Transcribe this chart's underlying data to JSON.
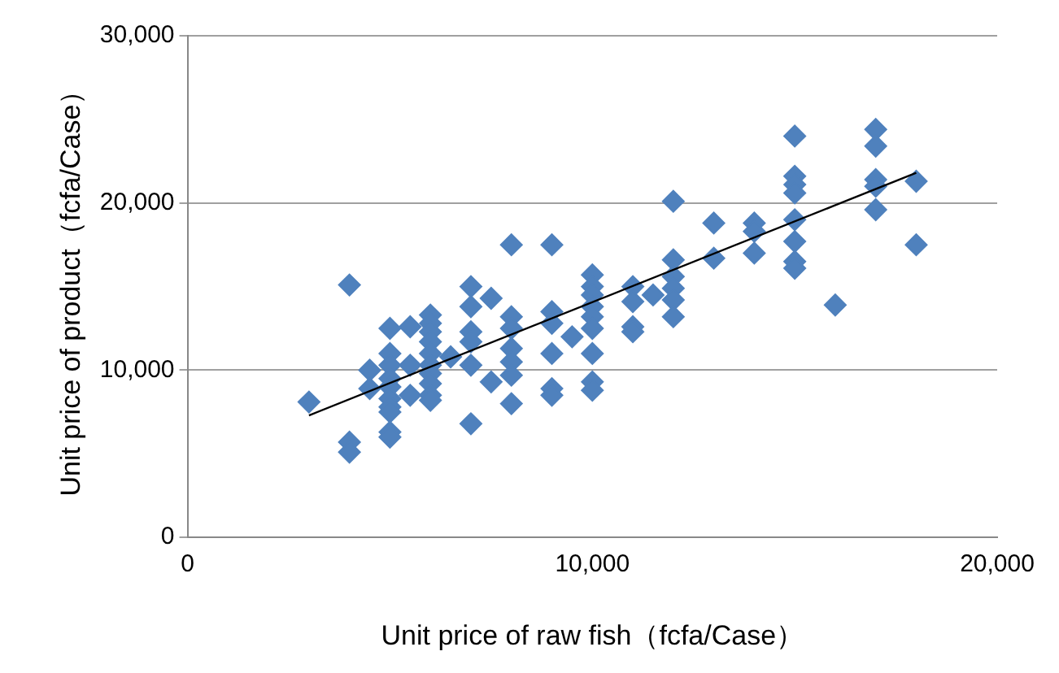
{
  "chart_data": {
    "type": "scatter",
    "xlabel": "Unit price of raw fish（fcfa/Case）",
    "ylabel": "Unit price of product（fcfa/Case）",
    "marker": "diamond",
    "grid": "y",
    "xlim": [
      0,
      20000
    ],
    "ylim": [
      0,
      30000
    ],
    "xticks": [
      {
        "value": 0,
        "label": "0"
      },
      {
        "value": 10000,
        "label": "10,000"
      },
      {
        "value": 20000,
        "label": "20,000"
      }
    ],
    "yticks": [
      {
        "value": 0,
        "label": "0"
      },
      {
        "value": 10000,
        "label": "10,000"
      },
      {
        "value": 20000,
        "label": "20,000"
      },
      {
        "value": 30000,
        "label": "30,000"
      }
    ],
    "series": [
      {
        "type": "scatter",
        "color": "#4f81bd",
        "x": [
          3000,
          4000,
          4000,
          4000,
          4500,
          4500,
          5000,
          5000,
          5000,
          5000,
          5000,
          5000,
          5000,
          5000,
          5000,
          5000,
          5500,
          5500,
          5500,
          6000,
          6000,
          6000,
          6000,
          6000,
          6000,
          6000,
          6000,
          6000,
          6000,
          6500,
          7000,
          7000,
          7000,
          7000,
          7000,
          7000,
          7500,
          7500,
          8000,
          8000,
          8000,
          8000,
          8000,
          8000,
          8000,
          9000,
          9000,
          9000,
          9000,
          9000,
          9000,
          9500,
          10000,
          10000,
          10000,
          10000,
          10000,
          10000,
          10000,
          10000,
          10000,
          11000,
          11000,
          11000,
          11000,
          11500,
          12000,
          12000,
          12000,
          12000,
          12000,
          12000,
          13000,
          13000,
          14000,
          14000,
          14000,
          15000,
          15000,
          15000,
          15000,
          15000,
          15000,
          15000,
          15000,
          16000,
          17000,
          17000,
          17000,
          17000,
          17000,
          18000,
          18000
        ],
        "values": [
          8100,
          15100,
          5700,
          5100,
          10000,
          8900,
          12500,
          11000,
          10300,
          9500,
          9000,
          8300,
          7800,
          7500,
          6300,
          6000,
          12600,
          10300,
          8500,
          13300,
          12800,
          12300,
          11700,
          11000,
          10300,
          9800,
          9200,
          8500,
          8200,
          10800,
          15000,
          13800,
          12300,
          11700,
          10300,
          6800,
          14300,
          9300,
          17500,
          13200,
          12500,
          11300,
          10500,
          9700,
          8000,
          17500,
          13500,
          12800,
          11000,
          8900,
          8500,
          12000,
          15700,
          15000,
          14500,
          13800,
          13200,
          12500,
          11000,
          9300,
          8800,
          15000,
          14100,
          12600,
          12300,
          14500,
          20100,
          16600,
          15600,
          14900,
          14200,
          13200,
          18800,
          16700,
          18800,
          18300,
          17000,
          24000,
          21600,
          21100,
          20600,
          19000,
          17700,
          16500,
          16100,
          13900,
          24400,
          23400,
          21400,
          21000,
          19600,
          21300,
          17500
        ]
      },
      {
        "type": "line",
        "color": "#000000",
        "marker": "none",
        "x": [
          3000,
          18000
        ],
        "values": [
          7300,
          21800
        ]
      }
    ]
  }
}
